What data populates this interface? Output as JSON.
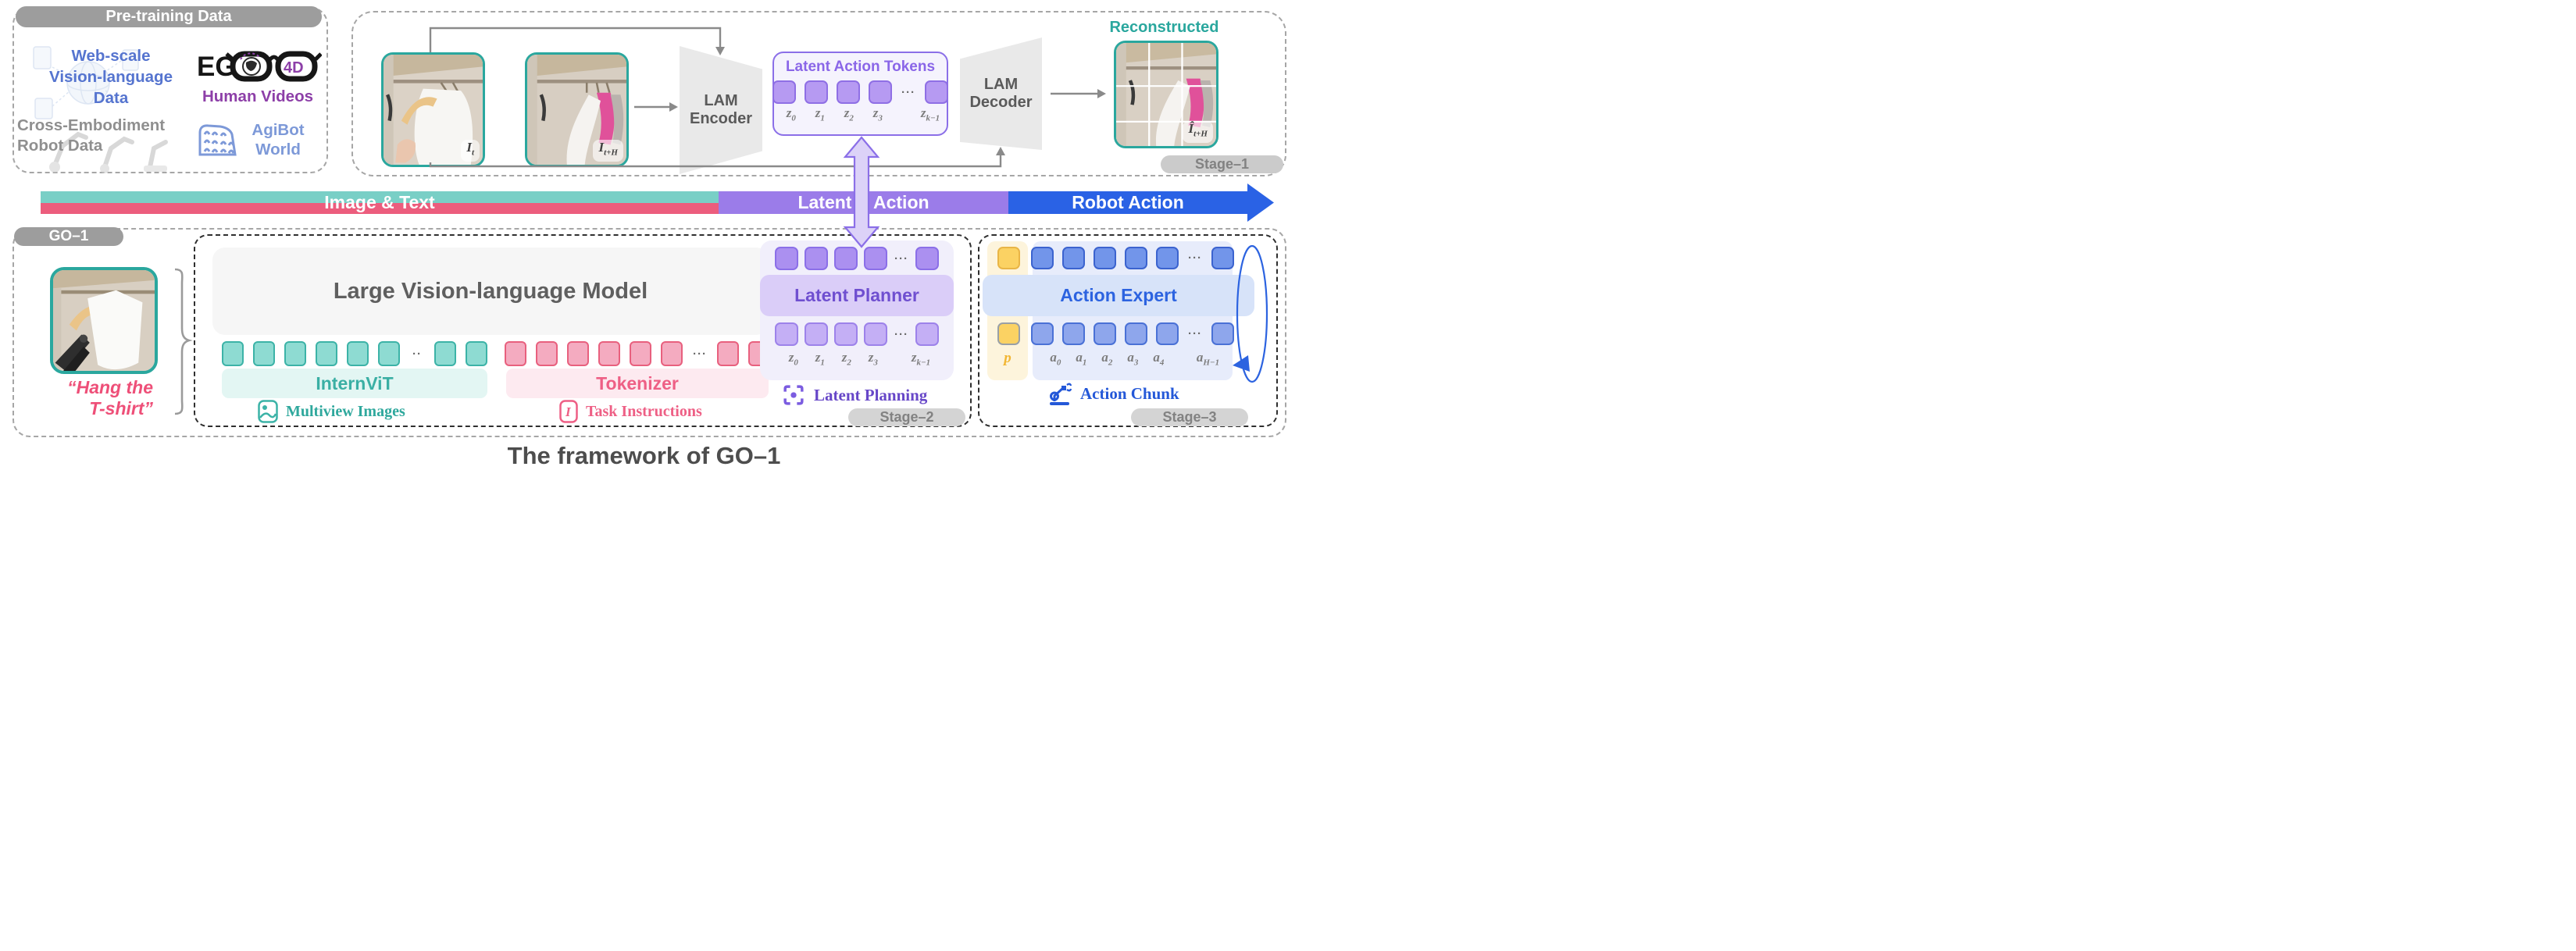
{
  "caption": "The framework of GO–1",
  "pretraining": {
    "title": "Pre-training Data",
    "web_scale_lines": [
      "Web-scale",
      "Vision-language",
      "Data"
    ],
    "ego": {
      "eg": "EG",
      "fourd": "4D"
    },
    "human_videos": "Human Videos",
    "cross_embodiment_lines": [
      "Cross-Embodiment",
      "Robot Data"
    ],
    "agibot_lines": [
      "AgiBot",
      "World"
    ]
  },
  "stage1": {
    "pill": "Stage–1",
    "label_it": {
      "b": "I",
      "s": "t"
    },
    "label_ith": {
      "b": "I",
      "s": "t+H"
    },
    "encoder_lines": [
      "LAM",
      "Encoder"
    ],
    "decoder_lines": [
      "LAM",
      "Decoder"
    ],
    "tokens_title": "Latent Action Tokens",
    "tokens": {
      "before": 4,
      "after": 1,
      "dots": "···"
    },
    "token_labels": [
      {
        "b": "z",
        "s": "0"
      },
      {
        "b": "z",
        "s": "1"
      },
      {
        "b": "z",
        "s": "2"
      },
      {
        "b": "z",
        "s": "3"
      },
      {
        "b": "z",
        "s": "k−1"
      }
    ],
    "reconstructed": "Reconstructed",
    "label_recon": {
      "b": "Î",
      "s": "t+H"
    }
  },
  "bar": {
    "segments": [
      {
        "label": "Image & Text",
        "top_color": "#79cfc6",
        "bottom_color": "#ec5d7d"
      },
      {
        "label": "Latent Action",
        "color": "#9b7ce9"
      },
      {
        "label": "Robot Action",
        "color": "#2a62e5"
      }
    ]
  },
  "go1": {
    "pill": "GO–1",
    "instruction_lines": [
      "“Hang the",
      "T-shirt”"
    ],
    "lvlm_title": "Large Vision-language Model",
    "visual_tokens": {
      "before": 6,
      "after": 2,
      "dots": "··"
    },
    "text_tokens": {
      "before": 6,
      "after": 2,
      "dots": "···"
    },
    "internvit": "InternViT",
    "tokenizer": "Tokenizer",
    "multiview": "Multiview Images",
    "task_instructions": "Task Instructions"
  },
  "stage2": {
    "pill": "Stage–2",
    "planner": "Latent Planner",
    "top_tokens": {
      "before": 4,
      "after": 1,
      "dots": "···"
    },
    "bottom_tokens": {
      "before": 4,
      "after": 1,
      "dots": "···"
    },
    "token_labels": [
      {
        "b": "z",
        "s": "0"
      },
      {
        "b": "z",
        "s": "1"
      },
      {
        "b": "z",
        "s": "2"
      },
      {
        "b": "z",
        "s": "3"
      },
      {
        "b": "z",
        "s": "k−1"
      }
    ],
    "latent_planning": "Latent Planning"
  },
  "stage3": {
    "pill": "Stage–3",
    "expert": "Action Expert",
    "top_tokens": {
      "before": 5,
      "after": 1,
      "dots": "···"
    },
    "bottom_tokens": {
      "before": 5,
      "after": 1,
      "dots": "···"
    },
    "label_p": {
      "b": "p",
      "s": ""
    },
    "token_labels": [
      {
        "b": "a",
        "s": "0"
      },
      {
        "b": "a",
        "s": "1"
      },
      {
        "b": "a",
        "s": "2"
      },
      {
        "b": "a",
        "s": "3"
      },
      {
        "b": "a",
        "s": "4"
      },
      {
        "b": "a",
        "s": "H−1"
      }
    ],
    "action_chunk": "Action Chunk"
  }
}
